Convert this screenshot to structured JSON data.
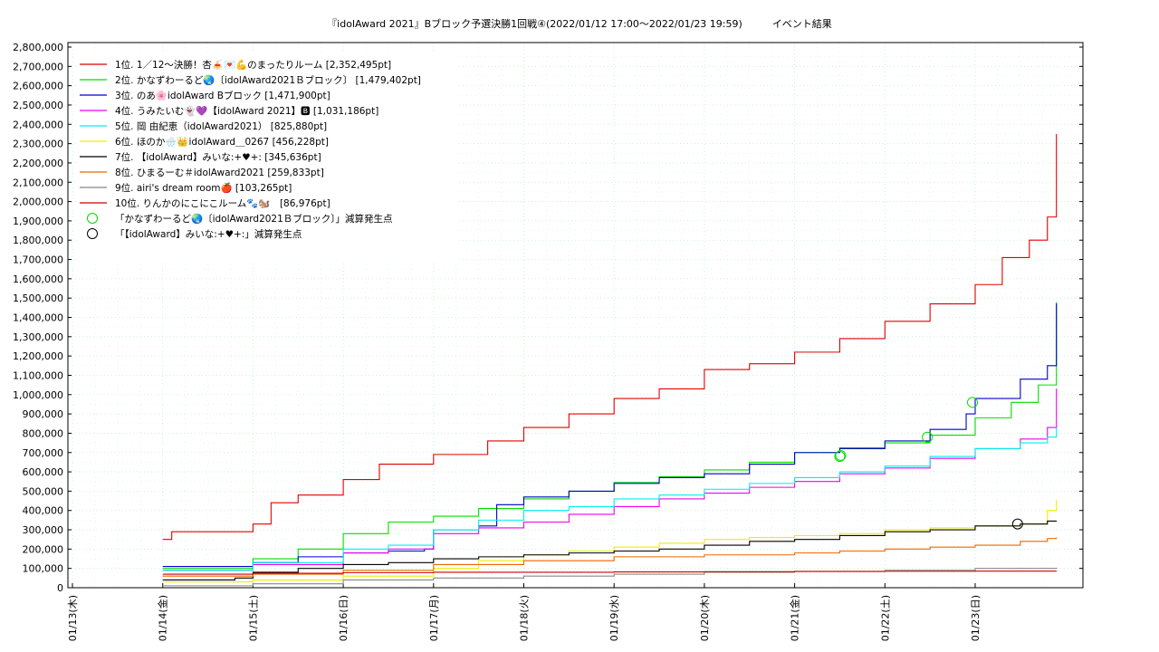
{
  "chart_data": {
    "type": "line",
    "title": "『idolAward 2021』Bブロック予選決勝1回戦④(2022/01/12 17:00～2022/01/23 19:59)　　　イベント結果",
    "xlabel": "",
    "ylabel": "",
    "ylim": [
      0,
      2800000
    ],
    "yticks": [
      "0",
      "100,000",
      "200,000",
      "300,000",
      "400,000",
      "500,000",
      "600,000",
      "700,000",
      "800,000",
      "900,000",
      "1,000,000",
      "1,100,000",
      "1,200,000",
      "1,300,000",
      "1,400,000",
      "1,500,000",
      "1,600,000",
      "1,700,000",
      "1,800,000",
      "1,900,000",
      "2,000,000",
      "2,100,000",
      "2,200,000",
      "2,300,000",
      "2,400,000",
      "2,500,000",
      "2,600,000",
      "2,700,000",
      "2,800,000"
    ],
    "xlim": [
      0,
      11
    ],
    "categories": [
      "01/13(木)",
      "01/14(金)",
      "01/15(土)",
      "01/16(日)",
      "01/17(月)",
      "01/18(火)",
      "01/19(水)",
      "01/20(木)",
      "01/21(金)",
      "01/22(土)",
      "01/23(日)"
    ],
    "grid": true,
    "legend_position": "top-left",
    "series": [
      {
        "name": "1位. 1／12～決勝！杏🍝💌💪のまったりルーム [2,352,495pt]",
        "color": "#e00000",
        "x": [
          1.0,
          1.1,
          2.0,
          2.2,
          2.5,
          3.0,
          3.4,
          4.0,
          4.6,
          5.0,
          5.5,
          6.0,
          6.5,
          7.0,
          7.5,
          8.0,
          8.5,
          9.0,
          9.5,
          10.0,
          10.3,
          10.6,
          10.8,
          10.9
        ],
        "y": [
          250000,
          290000,
          330000,
          440000,
          480000,
          560000,
          640000,
          690000,
          760000,
          830000,
          900000,
          980000,
          1030000,
          1130000,
          1160000,
          1220000,
          1290000,
          1380000,
          1470000,
          1570000,
          1710000,
          1800000,
          1920000,
          2350000
        ]
      },
      {
        "name": "2位. かなずわーるど🌏〔idolAward2021Ｂブロック〕 [1,479,402pt]",
        "color": "#00dd00",
        "x": [
          1.0,
          2.0,
          2.5,
          3.0,
          3.5,
          4.0,
          4.5,
          5.0,
          5.5,
          6.0,
          6.5,
          7.0,
          7.5,
          8.0,
          8.5,
          9.0,
          9.5,
          10.0,
          10.4,
          10.7,
          10.9
        ],
        "y": [
          100000,
          150000,
          200000,
          280000,
          340000,
          370000,
          410000,
          460000,
          500000,
          545000,
          575000,
          610000,
          650000,
          700000,
          725000,
          750000,
          790000,
          880000,
          960000,
          1050000,
          1479402
        ]
      },
      {
        "name": "3位. のあ🌸idolAward Bブロック [1,471,900pt]",
        "color": "#0000cc",
        "x": [
          1.0,
          2.0,
          2.5,
          3.0,
          3.5,
          3.9,
          4.0,
          4.5,
          4.7,
          5.0,
          5.5,
          6.0,
          6.5,
          7.0,
          7.5,
          8.0,
          8.5,
          9.0,
          9.5,
          9.9,
          10.0,
          10.5,
          10.8,
          10.9
        ],
        "y": [
          110000,
          130000,
          160000,
          180000,
          190000,
          200000,
          300000,
          320000,
          430000,
          470000,
          500000,
          540000,
          570000,
          590000,
          640000,
          700000,
          720000,
          760000,
          820000,
          900000,
          980000,
          1080000,
          1150000,
          1471900
        ]
      },
      {
        "name": "4位. うみたいむ👻💜【idolAward 2021】🅱 [1,031,186pt]",
        "color": "#ee00ee",
        "x": [
          1.0,
          2.0,
          3.0,
          3.5,
          4.0,
          4.5,
          5.0,
          5.5,
          6.0,
          6.5,
          7.0,
          7.5,
          8.0,
          8.5,
          9.0,
          9.5,
          10.0,
          10.5,
          10.8,
          10.9
        ],
        "y": [
          90000,
          120000,
          180000,
          200000,
          280000,
          310000,
          340000,
          380000,
          420000,
          460000,
          490000,
          520000,
          550000,
          590000,
          620000,
          670000,
          720000,
          770000,
          830000,
          1031186
        ]
      },
      {
        "name": "5位. 岡 由紀恵（idolAward2021） [825,880pt]",
        "color": "#00eeee",
        "x": [
          1.0,
          2.0,
          3.0,
          3.5,
          4.0,
          4.5,
          5.0,
          5.5,
          6.0,
          6.5,
          7.0,
          7.5,
          8.0,
          8.5,
          9.0,
          9.5,
          10.0,
          10.5,
          10.8,
          10.9
        ],
        "y": [
          90000,
          130000,
          200000,
          220000,
          300000,
          350000,
          400000,
          420000,
          460000,
          480000,
          510000,
          540000,
          570000,
          600000,
          630000,
          680000,
          720000,
          750000,
          780000,
          825880
        ]
      },
      {
        "name": "6位. ほのか🌧️👑idolAward＿0267 [456,228pt]",
        "color": "#eeee00",
        "x": [
          1.0,
          2.0,
          3.0,
          4.0,
          4.5,
          5.0,
          5.5,
          6.0,
          6.5,
          7.0,
          7.5,
          8.0,
          8.5,
          9.0,
          9.5,
          10.0,
          10.5,
          10.8,
          10.9
        ],
        "y": [
          30000,
          40000,
          60000,
          100000,
          140000,
          170000,
          190000,
          210000,
          230000,
          250000,
          260000,
          270000,
          280000,
          300000,
          310000,
          320000,
          330000,
          400000,
          456228
        ]
      },
      {
        "name": "7位. 【idolAward】みいな:+♥+: [345,636pt]",
        "color": "#000000",
        "x": [
          1.0,
          1.5,
          1.8,
          2.0,
          2.5,
          3.0,
          3.5,
          4.0,
          4.5,
          5.0,
          5.5,
          6.0,
          6.5,
          7.0,
          7.5,
          8.0,
          8.5,
          9.0,
          9.5,
          10.0,
          10.5,
          10.8,
          10.9
        ],
        "y": [
          40000,
          40000,
          50000,
          80000,
          100000,
          120000,
          130000,
          150000,
          160000,
          170000,
          180000,
          190000,
          200000,
          220000,
          240000,
          250000,
          270000,
          290000,
          300000,
          320000,
          330000,
          345000,
          345636
        ]
      },
      {
        "name": "8位. ひまるーむ＃idolAward2021 [259,833pt]",
        "color": "#ee6600",
        "x": [
          1.0,
          2.0,
          3.0,
          4.0,
          5.0,
          6.0,
          7.0,
          8.0,
          8.5,
          9.0,
          9.5,
          10.0,
          10.5,
          10.8,
          10.9
        ],
        "y": [
          60000,
          70000,
          90000,
          120000,
          140000,
          160000,
          170000,
          180000,
          190000,
          200000,
          210000,
          220000,
          240000,
          255000,
          259833
        ]
      },
      {
        "name": "9位. airi's dream room🍎 [103,265pt]",
        "color": "#888888",
        "x": [
          1.0,
          2.0,
          3.0,
          4.0,
          5.0,
          6.0,
          7.0,
          8.0,
          9.0,
          10.0,
          10.9
        ],
        "y": [
          10000,
          20000,
          40000,
          50000,
          60000,
          70000,
          80000,
          85000,
          90000,
          100000,
          103265
        ]
      },
      {
        "name": "10位. りんかのにこにこルーム🐾🐿️　[86,976pt]",
        "color": "#cc0000",
        "x": [
          1.0,
          2.0,
          3.0,
          4.0,
          5.0,
          6.0,
          7.0,
          8.0,
          9.0,
          10.0,
          10.9
        ],
        "y": [
          70000,
          75000,
          78000,
          80000,
          80000,
          82000,
          83000,
          84000,
          85000,
          86000,
          86976
        ]
      }
    ],
    "markers": [
      {
        "name": "「かなずわーるど🌏〔idolAward2021Ｂブロック〕」減算発生点",
        "color": "#00dd00",
        "points": [
          [
            8.5,
            680000
          ],
          [
            8.51,
            685000
          ],
          [
            9.47,
            780000
          ],
          [
            9.97,
            960000
          ]
        ]
      },
      {
        "name": "「【idolAward】みいな:+♥+:」減算発生点",
        "color": "#000000",
        "points": [
          [
            10.47,
            330000
          ]
        ]
      }
    ]
  }
}
